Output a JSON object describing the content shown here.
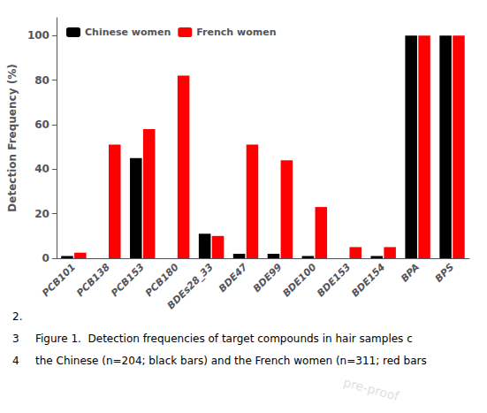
{
  "chart_data": {
    "type": "bar",
    "categories": [
      "PCB101",
      "PCB138",
      "PCB153",
      "PCB180",
      "BDEs28_33",
      "BDE47",
      "BDE99",
      "BDE100",
      "BDE153",
      "BDE154",
      "BPA",
      "BPS"
    ],
    "series": [
      {
        "name": "Chinese women",
        "color": "#000000",
        "values": [
          1,
          0,
          45,
          0,
          11,
          2,
          2,
          1,
          0,
          1,
          100,
          100
        ]
      },
      {
        "name": "French women",
        "color": "#ff0000",
        "values": [
          2.5,
          51,
          58,
          82,
          10,
          51,
          44,
          23,
          5,
          5,
          100,
          100
        ]
      }
    ],
    "ylabel": "Detection Frequency (%)",
    "ylim": [
      0,
      108
    ],
    "yticks": [
      0,
      20,
      40,
      60,
      80,
      100
    ],
    "grid": false,
    "legend": "upper left",
    "annotations": [
      "2.",
      "3",
      "4",
      "Figure 1.  Detection frequencies of target compounds in hair samples c",
      "the Chinese (n=204; black bars) and the French women (n=311; red bars",
      "pre-proof"
    ]
  }
}
